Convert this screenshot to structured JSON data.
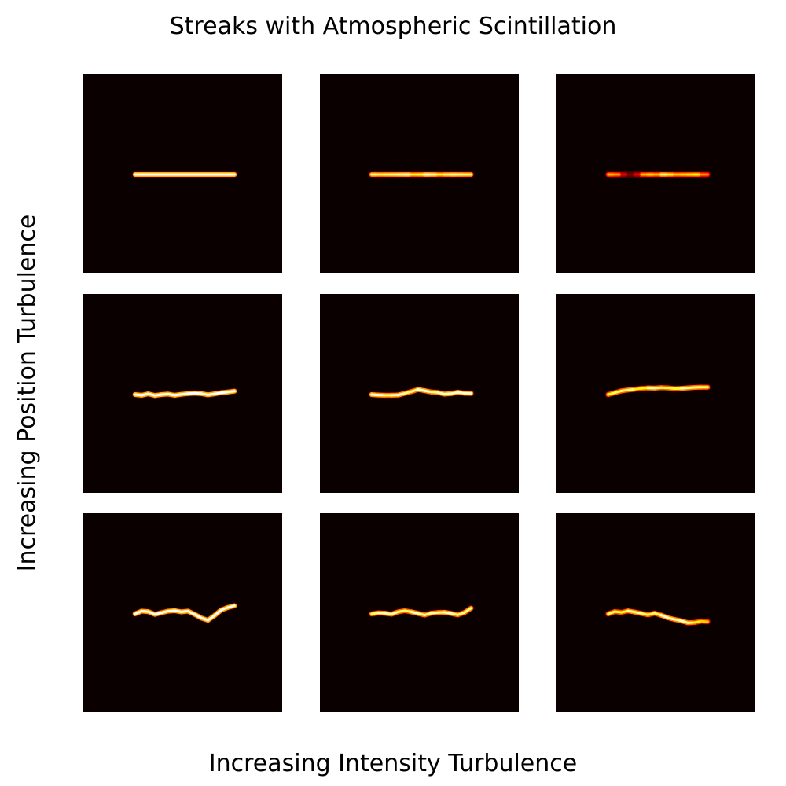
{
  "figure": {
    "title": "Streaks with Atmospheric Scintillation",
    "xlabel": "Increasing Intensity Turbulence",
    "ylabel": "Increasing Position Turbulence"
  },
  "chart_data": {
    "type": "heatmap",
    "title": "Streaks with Atmospheric Scintillation",
    "xlabel": "Increasing Intensity Turbulence",
    "ylabel": "Increasing Position Turbulence",
    "colormap": "hot",
    "background_color": "#0a0000",
    "grid": false,
    "axes_visible": false,
    "layout": "3x3",
    "rows": "position turbulence level (0 = none, increasing downward)",
    "columns": "intensity turbulence level (0 = none, increasing rightward)",
    "panels": [
      {
        "row": 0,
        "col": 0,
        "streak_x": [
          0.26,
          0.76
        ],
        "offsets_y": [
          0,
          0,
          0,
          0,
          0,
          0,
          0,
          0,
          0,
          0,
          0,
          0,
          0,
          0,
          0,
          0
        ],
        "intensity": [
          1,
          1,
          1,
          1,
          1,
          1,
          1,
          1,
          1,
          1,
          1,
          1,
          1,
          1,
          1,
          1
        ]
      },
      {
        "row": 0,
        "col": 1,
        "streak_x": [
          0.26,
          0.76
        ],
        "offsets_y": [
          0,
          0,
          0,
          0,
          0,
          0,
          0,
          0,
          0,
          0,
          0,
          0,
          0,
          0,
          0,
          0
        ],
        "intensity": [
          0.85,
          0.9,
          0.75,
          0.95,
          0.8,
          1,
          0.85,
          0.7,
          0.9,
          1,
          0.8,
          0.75,
          0.95,
          0.85,
          0.9,
          0.8
        ]
      },
      {
        "row": 0,
        "col": 2,
        "streak_x": [
          0.26,
          0.76
        ],
        "offsets_y": [
          0,
          0,
          0,
          0,
          0,
          0,
          0,
          0,
          0,
          0,
          0,
          0,
          0,
          0,
          0,
          0
        ],
        "intensity": [
          0.55,
          0.75,
          0.45,
          0.2,
          0.15,
          0.5,
          0.8,
          0.6,
          0.7,
          1,
          0.55,
          0.8,
          0.6,
          0.85,
          0.65,
          0.5
        ]
      },
      {
        "row": 1,
        "col": 0,
        "streak_x": [
          0.26,
          0.76
        ],
        "offsets_y": [
          0,
          0.3,
          -0.3,
          0.4,
          0,
          -0.2,
          0.3,
          -0.1,
          -0.4,
          -0.6,
          -0.4,
          0.1,
          -0.3,
          -0.8,
          -1.1,
          -1.5
        ],
        "intensity": [
          1,
          1,
          1,
          1,
          1,
          1,
          1,
          1,
          1,
          1,
          1,
          1,
          1,
          1,
          1,
          1
        ]
      },
      {
        "row": 1,
        "col": 1,
        "streak_x": [
          0.26,
          0.76
        ],
        "offsets_y": [
          0,
          0.2,
          0.3,
          0.3,
          0.2,
          -0.5,
          -1.3,
          -2.2,
          -1.7,
          -1.1,
          -0.9,
          -0.2,
          -0.4,
          -1.0,
          -0.6,
          -0.5
        ],
        "intensity": [
          0.95,
          1,
          0.9,
          0.85,
          1,
          0.9,
          0.8,
          0.95,
          1,
          0.9,
          0.85,
          1,
          0.95,
          0.9,
          1,
          0.9
        ]
      },
      {
        "row": 1,
        "col": 2,
        "streak_x": [
          0.26,
          0.76
        ],
        "offsets_y": [
          0,
          -0.8,
          -1.6,
          -2.0,
          -2.3,
          -2.7,
          -2.9,
          -2.8,
          -3.0,
          -2.9,
          -2.6,
          -2.7,
          -2.9,
          -3.1,
          -3.2,
          -3.2
        ],
        "intensity": [
          0.7,
          0.9,
          0.75,
          0.95,
          0.8,
          0.65,
          0.85,
          1,
          0.75,
          0.9,
          0.7,
          0.85,
          0.95,
          0.8,
          0.9,
          0.75
        ]
      },
      {
        "row": 2,
        "col": 0,
        "streak_x": [
          0.26,
          0.76
        ],
        "offsets_y": [
          0,
          -1.2,
          -1.0,
          0.2,
          -0.5,
          -1.2,
          -1.4,
          -0.9,
          -1.2,
          0.2,
          1.8,
          2.8,
          0.7,
          -1.7,
          -2.8,
          -3.6
        ],
        "intensity": [
          1,
          1,
          0.95,
          1,
          1,
          0.95,
          1,
          1,
          0.95,
          1,
          1,
          0.95,
          1,
          1,
          0.95,
          1
        ]
      },
      {
        "row": 2,
        "col": 1,
        "streak_x": [
          0.26,
          0.76
        ],
        "offsets_y": [
          0,
          -0.4,
          -0.3,
          0.1,
          -0.9,
          -1.4,
          -0.9,
          -0.2,
          0.5,
          -0.3,
          -0.6,
          -0.7,
          -0.2,
          0.4,
          -0.6,
          -2.5
        ],
        "intensity": [
          0.9,
          0.8,
          1,
          0.85,
          0.95,
          0.75,
          0.9,
          1,
          0.8,
          0.95,
          0.85,
          0.9,
          1,
          0.8,
          0.9,
          0.85
        ]
      },
      {
        "row": 2,
        "col": 2,
        "streak_x": [
          0.26,
          0.76
        ],
        "offsets_y": [
          0,
          -1.0,
          -0.7,
          -1.3,
          -0.8,
          -0.2,
          0.4,
          -0.3,
          0.6,
          1.7,
          2.4,
          3.0,
          3.9,
          3.8,
          3.2,
          3.4
        ],
        "intensity": [
          0.75,
          0.9,
          0.7,
          0.85,
          0.95,
          0.8,
          0.9,
          0.75,
          0.9,
          1,
          0.85,
          0.95,
          0.9,
          0.8,
          0.7,
          0.65
        ]
      }
    ]
  }
}
